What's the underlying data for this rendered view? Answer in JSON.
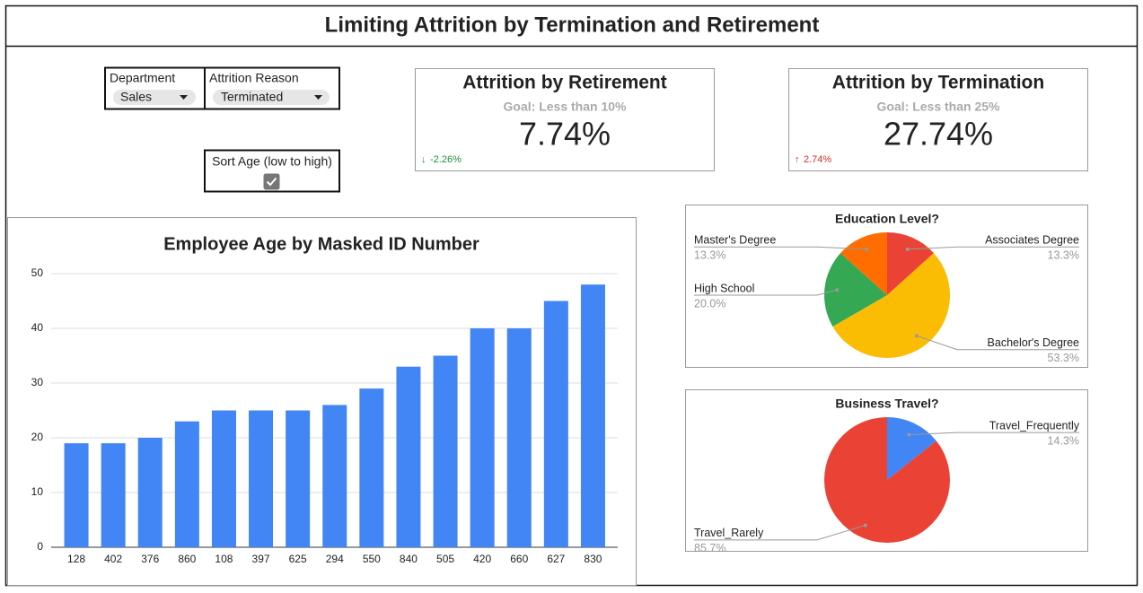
{
  "title": "Limiting Attrition by Termination and Retirement",
  "filters": [
    {
      "label": "Department",
      "value": "Sales"
    },
    {
      "label": "Attrition Reason",
      "value": "Terminated"
    }
  ],
  "checkbox": {
    "label": "Sort Age (low to high)",
    "checked": true
  },
  "kpis": [
    {
      "title": "Attrition by Retirement",
      "goal": "Goal: Less than 10%",
      "value": "7.74%",
      "delta_arrow": "↓",
      "delta": "-2.26%",
      "delta_color": "#1e8e3e"
    },
    {
      "title": "Attrition by Termination",
      "goal": "Goal: Less than 25%",
      "value": "27.74%",
      "delta_arrow": "↑",
      "delta": "2.74%",
      "delta_color": "#d93025"
    }
  ],
  "chart_data": [
    {
      "type": "bar",
      "title": "Employee Age by Masked ID Number",
      "categories": [
        "128",
        "402",
        "376",
        "860",
        "108",
        "397",
        "625",
        "294",
        "550",
        "840",
        "505",
        "420",
        "660",
        "627",
        "830"
      ],
      "values": [
        19,
        19,
        20,
        23,
        25,
        25,
        25,
        26,
        29,
        33,
        35,
        40,
        40,
        45,
        48
      ],
      "color": "#4285f4",
      "ylim": [
        0,
        50
      ],
      "yticks": [
        0,
        10,
        20,
        30,
        40,
        50
      ],
      "grid": true
    },
    {
      "type": "pie",
      "title": "Education Level?",
      "categories": [
        "Associates Degree",
        "Bachelor's Degree",
        "High School",
        "Master's Degree"
      ],
      "values": [
        13.3,
        53.3,
        20,
        13.3
      ],
      "value_labels": [
        "13.3%",
        "53.3%",
        "20.0%",
        "13.3%"
      ],
      "colors": [
        "#ea4335",
        "#fbbc04",
        "#34a853",
        "#ff6d01"
      ]
    },
    {
      "type": "pie",
      "title": "Business Travel?",
      "categories": [
        "Travel_Frequently",
        "Travel_Rarely"
      ],
      "values": [
        14.3,
        85.7
      ],
      "value_labels": [
        "14.3%",
        "85.7%"
      ],
      "colors": [
        "#4285f4",
        "#ea4335"
      ]
    }
  ]
}
